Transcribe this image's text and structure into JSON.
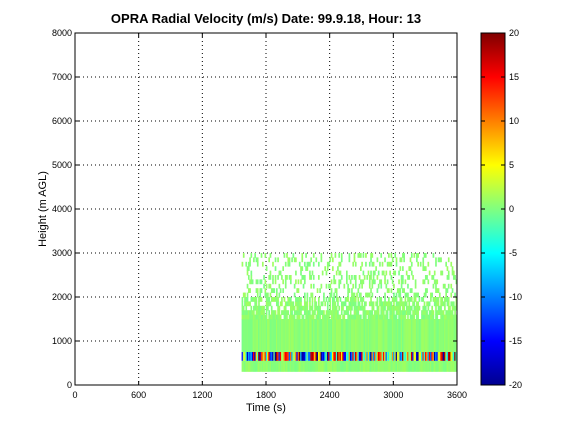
{
  "chart_data": [
    {
      "type": "heatmap",
      "title": "OPRA Radial Velocity (m/s)  Date: 99.9.18, Hour: 13",
      "xlabel": "Time (s)",
      "ylabel": "Height (m AGL)",
      "xlim": [
        0,
        3600
      ],
      "ylim": [
        0,
        8000
      ],
      "xticks": [
        0,
        600,
        1200,
        1800,
        2400,
        3000,
        3600
      ],
      "yticks": [
        0,
        1000,
        2000,
        3000,
        4000,
        5000,
        6000,
        7000,
        8000
      ],
      "grid": true,
      "colormap": "jet",
      "clim": [
        -20,
        20
      ],
      "colorbar_ticks": [
        -20,
        -15,
        -10,
        -5,
        0,
        5,
        10,
        15,
        20
      ],
      "data_extent": {
        "time_start": 1570,
        "time_end": 3600,
        "height_bottom": 300,
        "height_top": 3000
      },
      "layers": [
        {
          "height_range": [
            300,
            550
          ],
          "velocity": 0.5,
          "coverage": "continuous"
        },
        {
          "height_range": [
            550,
            750
          ],
          "velocity": "mixed -20 to 20",
          "coverage": "continuous"
        },
        {
          "height_range": [
            750,
            1500
          ],
          "velocity": 0.5,
          "coverage": "continuous"
        },
        {
          "height_range": [
            1500,
            2000
          ],
          "velocity": 0.5,
          "coverage": "broken"
        },
        {
          "height_range": [
            2000,
            3000
          ],
          "velocity": 0.5,
          "coverage": "sparse"
        }
      ]
    }
  ]
}
